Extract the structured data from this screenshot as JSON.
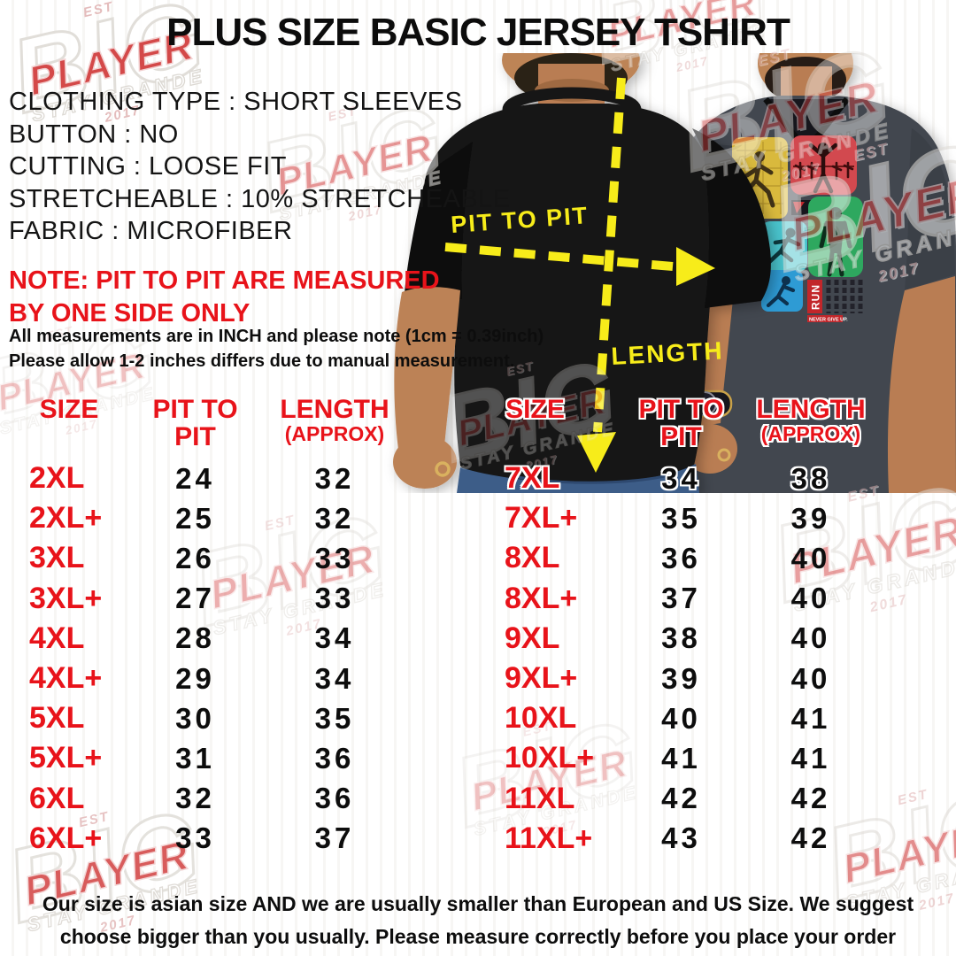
{
  "title": "PLUS SIZE BASIC JERSEY TSHIRT",
  "specs": [
    "CLOTHING TYPE : SHORT SLEEVES",
    "BUTTON : NO",
    "CUTTING : LOOSE FIT",
    "STRETCHEABLE : 10% STRETCHEABLE",
    "FABRIC : MICROFIBER"
  ],
  "note": {
    "line1": "NOTE: PIT TO PIT ARE MEASURED",
    "line2": "BY ONE SIDE ONLY"
  },
  "measurement_notes": [
    "All measurements are in INCH and please note (1cm = 0.39inch)",
    "Please allow 1-2 inches differs due to manual measurement."
  ],
  "diagram": {
    "pit_to_pit_label": "PIT TO PIT",
    "length_label": "LENGTH",
    "shirt_graphic_run_label": "RUN",
    "shirt_graphic_tag": "NEVER GIVE UP."
  },
  "size_chart": {
    "headers": {
      "size": "SIZE",
      "pit_line1": "PIT TO",
      "pit_line2": "PIT",
      "length_line1": "LENGTH",
      "length_line2": "(APPROX)"
    },
    "left_rows": [
      {
        "size": "2XL",
        "pit": 24,
        "length": 32
      },
      {
        "size": "2XL+",
        "pit": 25,
        "length": 32
      },
      {
        "size": "3XL",
        "pit": 26,
        "length": 33
      },
      {
        "size": "3XL+",
        "pit": 27,
        "length": 33
      },
      {
        "size": "4XL",
        "pit": 28,
        "length": 34
      },
      {
        "size": "4XL+",
        "pit": 29,
        "length": 34
      },
      {
        "size": "5XL",
        "pit": 30,
        "length": 35
      },
      {
        "size": "5XL+",
        "pit": 31,
        "length": 36
      },
      {
        "size": "6XL",
        "pit": 32,
        "length": 36
      },
      {
        "size": "6XL+",
        "pit": 33,
        "length": 37
      }
    ],
    "right_rows": [
      {
        "size": "7XL",
        "pit": 34,
        "length": 38
      },
      {
        "size": "7XL+",
        "pit": 35,
        "length": 39
      },
      {
        "size": "8XL",
        "pit": 36,
        "length": 40
      },
      {
        "size": "8XL+",
        "pit": 37,
        "length": 40
      },
      {
        "size": "9XL",
        "pit": 38,
        "length": 40
      },
      {
        "size": "9XL+",
        "pit": 39,
        "length": 40
      },
      {
        "size": "10XL",
        "pit": 40,
        "length": 41
      },
      {
        "size": "10XL+",
        "pit": 41,
        "length": 41
      },
      {
        "size": "11XL",
        "pit": 42,
        "length": 42
      },
      {
        "size": "11XL+",
        "pit": 43,
        "length": 42
      }
    ]
  },
  "footer": {
    "line1": "Our size is asian size AND we are usually smaller than European and US Size. We suggest",
    "line2": "choose bigger than you usually. Please measure correctly before you place your order"
  },
  "watermark": {
    "est": "EST",
    "big": "BIG",
    "player": "PLAYER",
    "stay": "STAY GRANDE",
    "year": "2017"
  },
  "colors": {
    "accent_red": "#e8131a",
    "arrow_yellow": "#f7ec1a"
  }
}
